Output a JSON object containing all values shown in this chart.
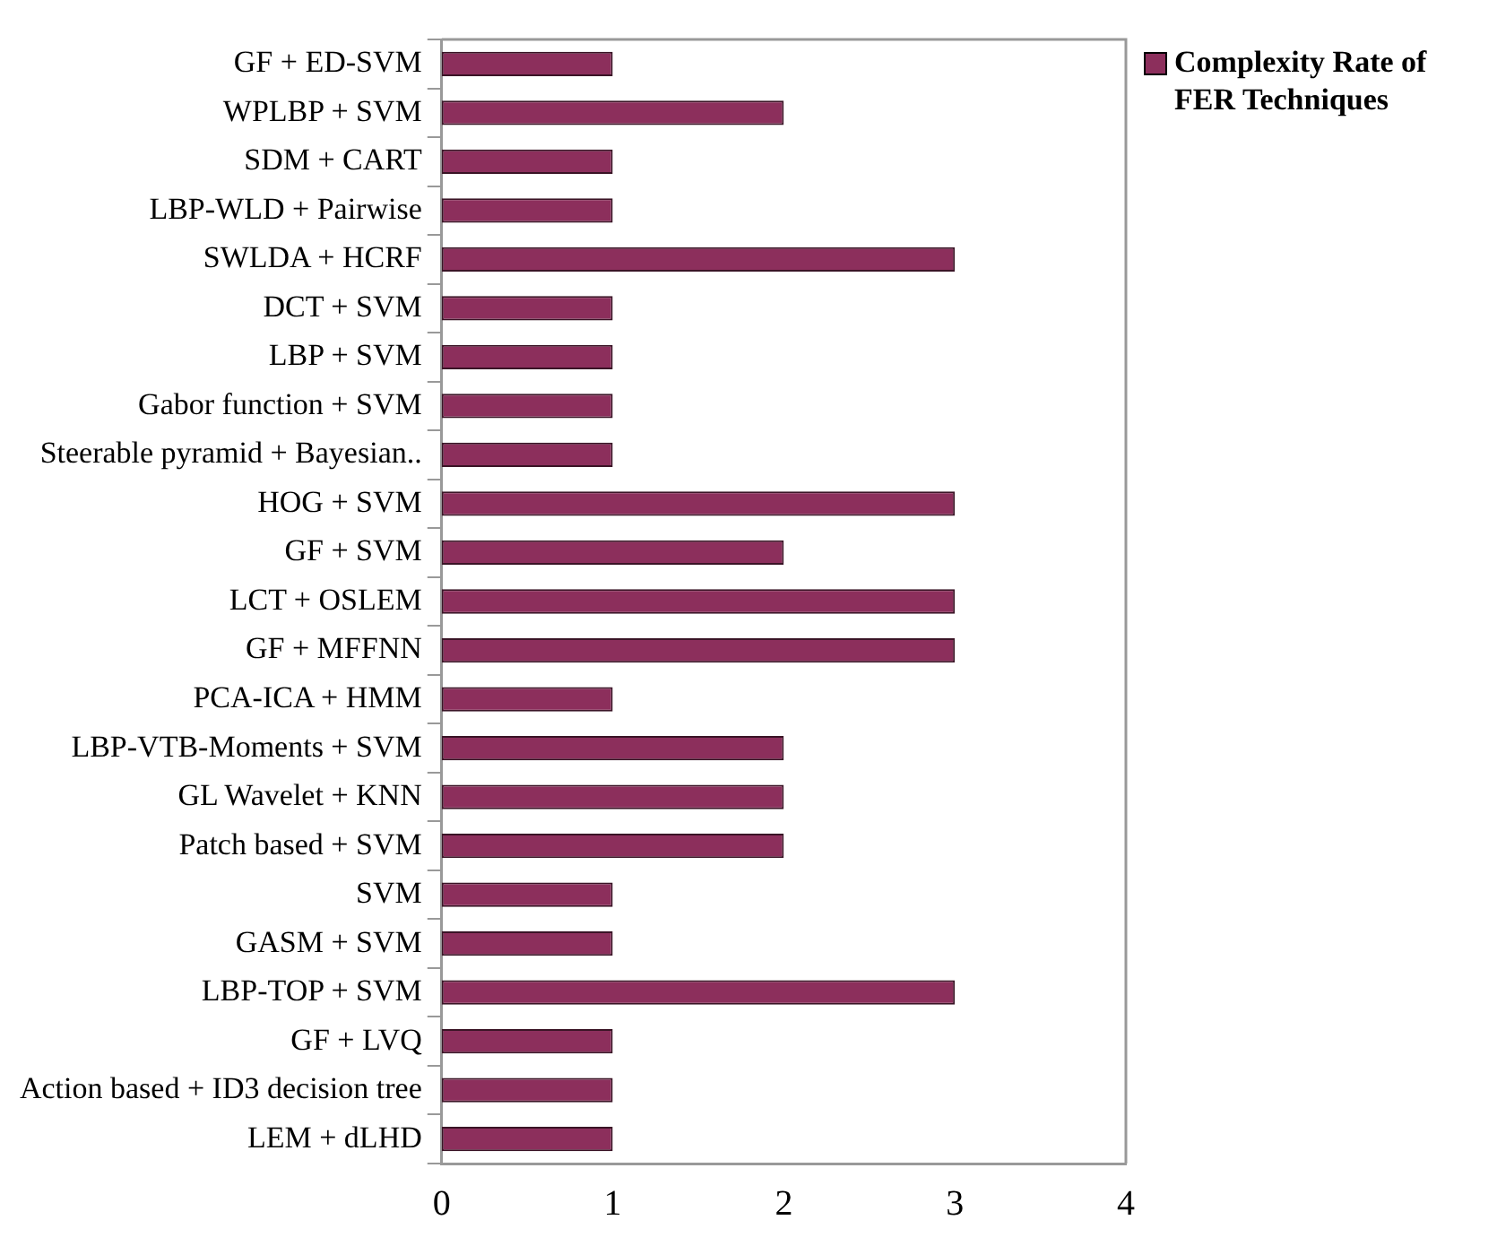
{
  "chart_data": {
    "type": "bar",
    "orientation": "horizontal",
    "categories": [
      "GF + ED-SVM",
      "WPLBP + SVM",
      "SDM + CART",
      "LBP-WLD + Pairwise",
      "SWLDA + HCRF",
      "DCT + SVM",
      "LBP + SVM",
      "Gabor function + SVM",
      "Steerable pyramid + Bayesian..",
      "HOG + SVM",
      "GF + SVM",
      "LCT + OSLEM",
      "GF + MFFNN",
      "PCA-ICA + HMM",
      "LBP-VTB-Moments + SVM",
      "GL Wavelet + KNN",
      "Patch based + SVM",
      "SVM",
      "GASM + SVM",
      "LBP-TOP + SVM",
      "GF + LVQ",
      "Action based + ID3 decision tree",
      "LEM + dLHD"
    ],
    "series": [
      {
        "name": "Complexity Rate of FER Techniques",
        "color": "#8c2f5c",
        "values": [
          1,
          2,
          1,
          1,
          3,
          1,
          1,
          1,
          1,
          3,
          2,
          3,
          3,
          1,
          2,
          2,
          2,
          1,
          1,
          3,
          1,
          1,
          1
        ]
      }
    ],
    "xlim": [
      0,
      4
    ],
    "xticks": [
      0,
      1,
      2,
      3,
      4
    ],
    "grid": false,
    "legend": "top right"
  }
}
